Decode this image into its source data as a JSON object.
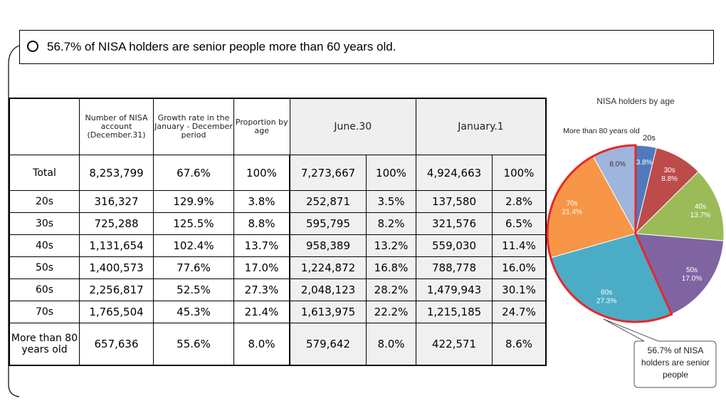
{
  "header": {
    "note": "56.7% of NISA holders are senior people more than 60 years old."
  },
  "table": {
    "headers": [
      "",
      "Number of NISA account (December.31)",
      "Growth rate in the January - December period",
      "Proportion by age",
      "June.30",
      "January.1"
    ],
    "rows": [
      [
        "Total",
        "8,253,799",
        "67.6%",
        "100%",
        "7,273,667",
        "100%",
        "4,924,663",
        "100%"
      ],
      [
        "20s",
        "316,327",
        "129.9%",
        "3.8%",
        "252,871",
        "3.5%",
        "137,580",
        "2.8%"
      ],
      [
        "30s",
        "725,288",
        "125.5%",
        "8.8%",
        "595,795",
        "8.2%",
        "321,576",
        "6.5%"
      ],
      [
        "40s",
        "1,131,654",
        "102.4%",
        "13.7%",
        "958,389",
        "13.2%",
        "559,030",
        "11.4%"
      ],
      [
        "50s",
        "1,400,573",
        "77.6%",
        "17.0%",
        "1,224,872",
        "16.8%",
        "788,778",
        "16.0%"
      ],
      [
        "60s",
        "2,256,817",
        "52.5%",
        "27.3%",
        "2,048,123",
        "28.2%",
        "1,479,943",
        "30.1%"
      ],
      [
        "70s",
        "1,765,504",
        "45.3%",
        "21.4%",
        "1,613,975",
        "22.2%",
        "1,215,185",
        "24.7%"
      ],
      [
        "More than 80 years old",
        "657,636",
        "55.6%",
        "8.0%",
        "579,642",
        "8.0%",
        "422,571",
        "8.6%"
      ]
    ]
  },
  "chart_data": {
    "type": "pie",
    "title": "NISA holders by age",
    "categories": [
      "20s",
      "30s",
      "40s",
      "50s",
      "60s",
      "70s",
      "More than 80 years old"
    ],
    "values": [
      3.8,
      8.8,
      13.7,
      17.0,
      27.3,
      21.4,
      8.0
    ],
    "value_labels": [
      "3.8%",
      "8.8%",
      "13.7%",
      "17.0%",
      "27.3%",
      "21.4%",
      "8.0%"
    ],
    "colors": [
      "#4f7bbd",
      "#bd4b4a",
      "#9bbb59",
      "#8064a2",
      "#4bacc6",
      "#f79646",
      "#9fb5dc"
    ],
    "annotation": "56.7% of NISA holders are senior people"
  }
}
